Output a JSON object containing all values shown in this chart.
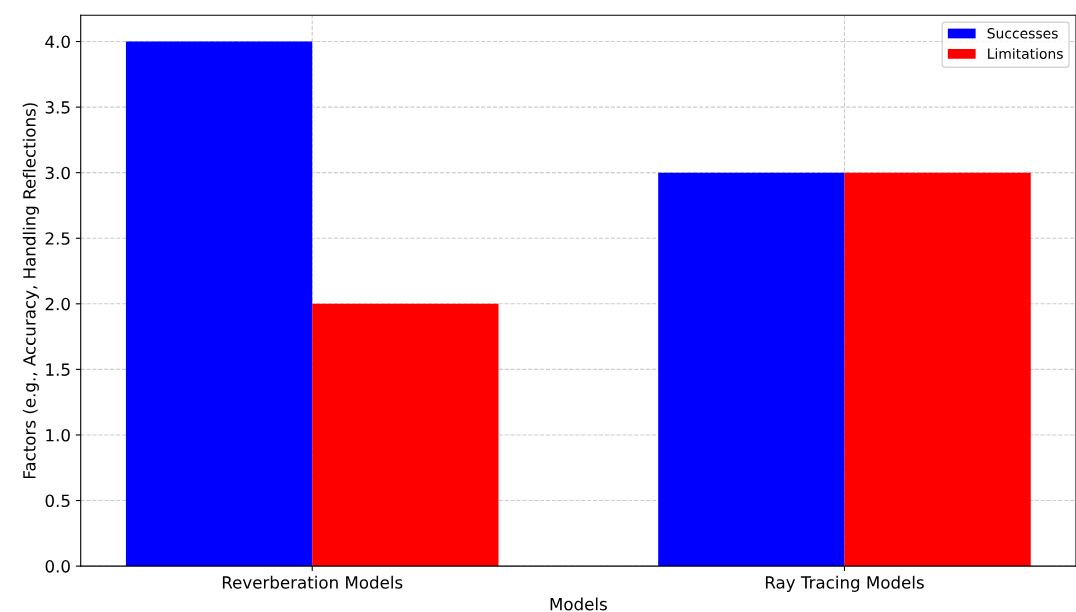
{
  "chart_data": {
    "type": "bar",
    "xlabel": "Models",
    "ylabel": "Factors (e.g., Accuracy, Handling Reflections)",
    "categories": [
      "Reverberation Models",
      "Ray Tracing Models"
    ],
    "series": [
      {
        "name": "Successes",
        "color": "#0000ff",
        "values": [
          4,
          3
        ]
      },
      {
        "name": "Limitations",
        "color": "#ff0000",
        "values": [
          2,
          3
        ]
      }
    ],
    "ylim": [
      0,
      4.2
    ],
    "yticks": [
      {
        "value": 0,
        "label": "0.0"
      },
      {
        "value": 0.5,
        "label": "0.5"
      },
      {
        "value": 1,
        "label": "1.0"
      },
      {
        "value": 1.5,
        "label": "1.5"
      },
      {
        "value": 2,
        "label": "2.0"
      },
      {
        "value": 2.5,
        "label": "2.5"
      },
      {
        "value": 3,
        "label": "3.0"
      },
      {
        "value": 3.5,
        "label": "3.5"
      },
      {
        "value": 4,
        "label": "4.0"
      }
    ],
    "grid": true,
    "legend": "top right"
  }
}
